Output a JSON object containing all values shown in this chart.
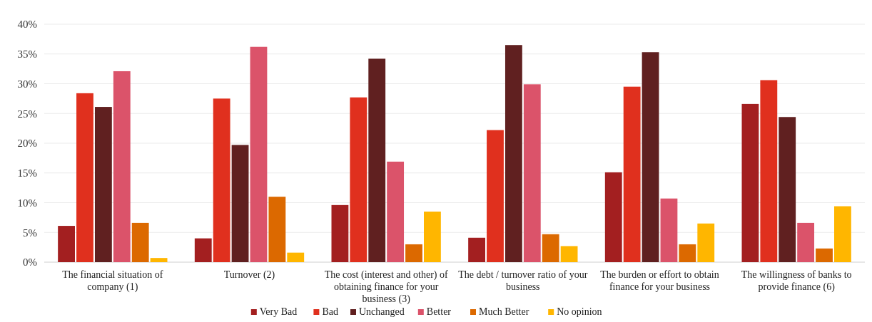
{
  "chart_data": {
    "type": "bar",
    "categories": [
      "The financial situation of company (1)",
      "Turnover (2)",
      "The cost (interest and other) of obtaining finance for your business (3)",
      "The debt / turnover ratio of your business",
      "The burden or effort to obtain finance for your business",
      "The willingness of banks to provide finance (6)"
    ],
    "series": [
      {
        "name": "Very Bad",
        "color": "#a31f20",
        "values": [
          6.1,
          4.0,
          9.6,
          4.1,
          15.1,
          26.6
        ]
      },
      {
        "name": "Bad",
        "color": "#e0301e",
        "values": [
          28.4,
          27.5,
          27.7,
          22.2,
          29.5,
          30.6
        ]
      },
      {
        "name": "Unchanged",
        "color": "#602020",
        "values": [
          26.1,
          19.7,
          34.2,
          36.5,
          35.3,
          24.4
        ]
      },
      {
        "name": "Better",
        "color": "#db536a",
        "values": [
          32.1,
          36.2,
          16.9,
          29.9,
          10.7,
          6.6
        ]
      },
      {
        "name": "Much Better",
        "color": "#dc6900",
        "values": [
          6.6,
          11.0,
          3.0,
          4.7,
          3.0,
          2.3
        ]
      },
      {
        "name": "No opinion",
        "color": "#ffb600",
        "values": [
          0.7,
          1.6,
          8.5,
          2.7,
          6.5,
          9.4
        ]
      }
    ],
    "ylim": [
      0,
      40
    ],
    "yticks": [
      {
        "value": 0,
        "label": "0%"
      },
      {
        "value": 5,
        "label": "5%"
      },
      {
        "value": 10,
        "label": "10%"
      },
      {
        "value": 15,
        "label": "15%"
      },
      {
        "value": 20,
        "label": "20%"
      },
      {
        "value": 25,
        "label": "25%"
      },
      {
        "value": 30,
        "label": "30%"
      },
      {
        "value": 35,
        "label": "35%"
      },
      {
        "value": 40,
        "label": "40%"
      }
    ],
    "grid": "y",
    "legend": "bottom"
  }
}
